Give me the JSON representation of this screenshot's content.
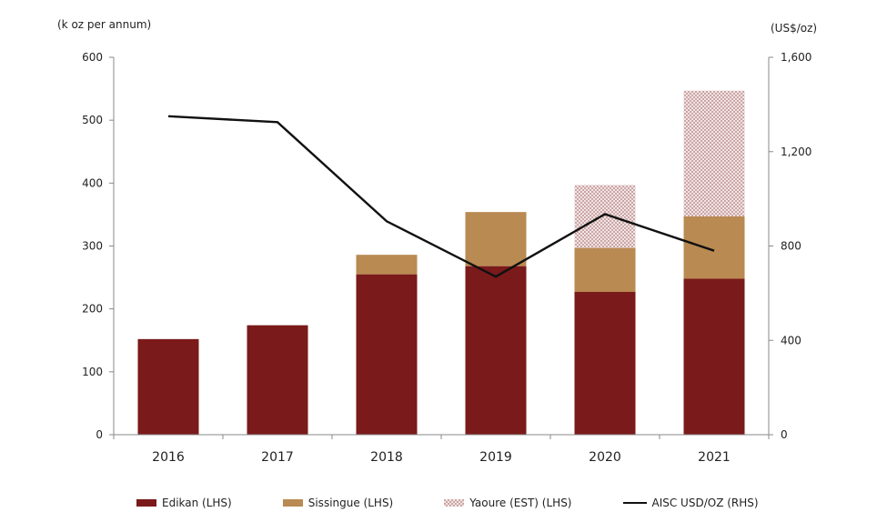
{
  "chart_data": {
    "type": "bar",
    "stacked": true,
    "categories": [
      "2016",
      "2017",
      "2018",
      "2019",
      "2020",
      "2021"
    ],
    "left_axis_label": "(k oz per annum)",
    "right_axis_label": "(US$/oz)",
    "ylim": [
      0,
      600
    ],
    "y_ticks": [
      0,
      100,
      200,
      300,
      400,
      500,
      600
    ],
    "y2lim": [
      0,
      1600
    ],
    "y2_ticks": [
      "0",
      "400",
      "800",
      "1,200",
      "1,600"
    ],
    "y2_tick_values": [
      0,
      400,
      800,
      1200,
      1600
    ],
    "grid": false,
    "legend_position": "bottom",
    "series": [
      {
        "name": "Edikan (LHS)",
        "type": "bar",
        "axis": "left",
        "color": "#7a1a1a",
        "pattern": "solid",
        "values": [
          152,
          174,
          255,
          268,
          227,
          248
        ]
      },
      {
        "name": "Sissingue (LHS)",
        "type": "bar",
        "axis": "left",
        "color": "#b98a52",
        "pattern": "solid",
        "values": [
          0,
          0,
          31,
          86,
          70,
          99
        ]
      },
      {
        "name": "Yaoure (EST) (LHS)",
        "type": "bar",
        "axis": "left",
        "color": "#c9a3a3",
        "pattern": "dotted",
        "values": [
          0,
          0,
          0,
          0,
          100,
          200
        ]
      },
      {
        "name": "AISC USD/OZ (RHS)",
        "type": "line",
        "axis": "right",
        "color": "#111111",
        "values": [
          1350,
          1325,
          905,
          670,
          935,
          780
        ]
      }
    ]
  }
}
